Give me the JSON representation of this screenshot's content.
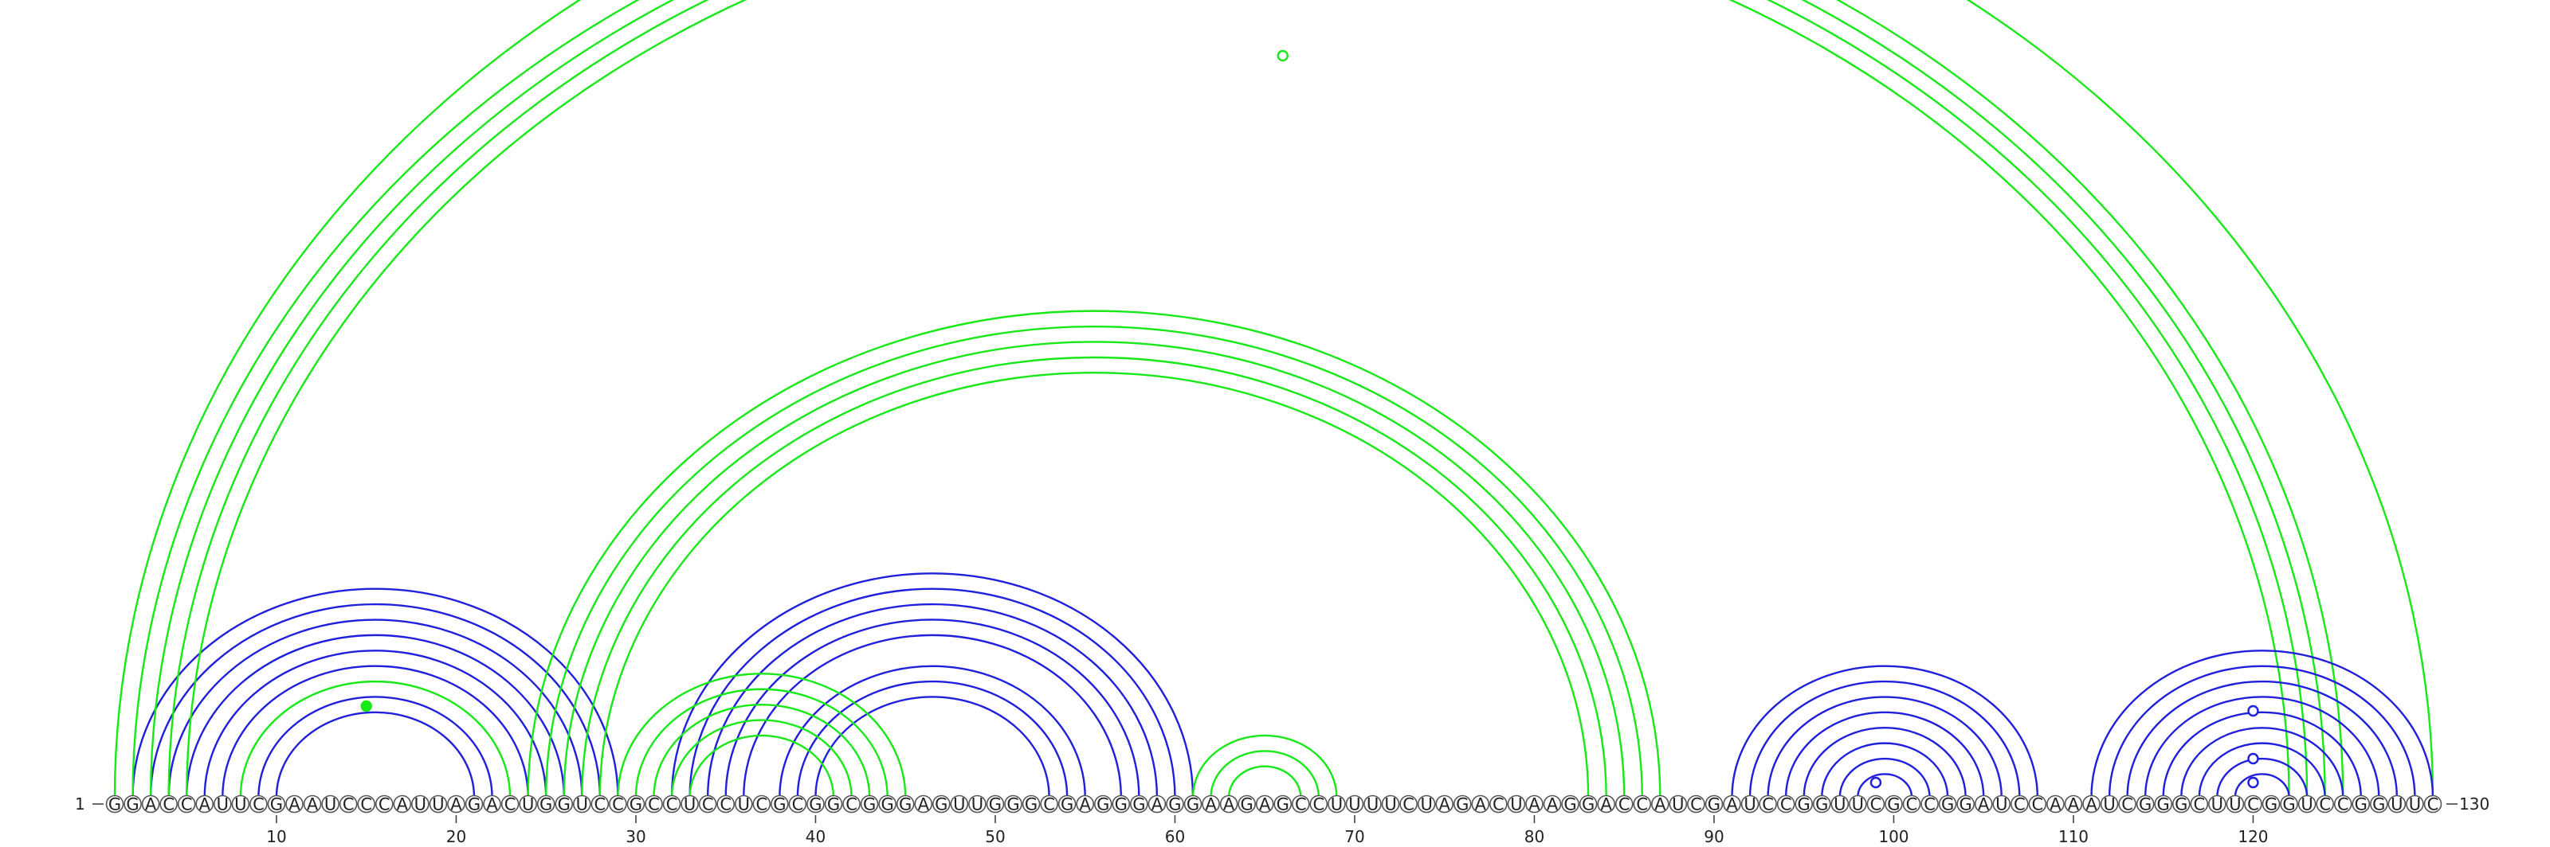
{
  "sequence": "GGACCAUUCGAAUCCCAUUAGACUGGUCCGCCUCCUCGCGGCGGGAGUUGGGCGAGGGAGGAAGAGCCUUUUCUAGACUAAGGACCAUCGAUCCGGUUCGCCGGAUCCAAAUCGGGCUUCGGUCCGGUUC",
  "start_label": "1",
  "end_label": "130",
  "tick_labels": [
    "10",
    "20",
    "30",
    "40",
    "50",
    "60",
    "70",
    "80",
    "90",
    "100",
    "110",
    "120"
  ],
  "colors": {
    "blue": "#1f1fdc",
    "green": "#18e818"
  },
  "chart_data": {
    "type": "arc-diagram",
    "length": 130,
    "tick_positions": [
      10,
      20,
      30,
      40,
      50,
      60,
      70,
      80,
      90,
      100,
      110,
      120
    ],
    "arcs": [
      {
        "i": 2,
        "j": 29,
        "color": "blue"
      },
      {
        "i": 3,
        "j": 28,
        "color": "blue"
      },
      {
        "i": 4,
        "j": 27,
        "color": "blue"
      },
      {
        "i": 5,
        "j": 26,
        "color": "blue"
      },
      {
        "i": 6,
        "j": 25,
        "color": "blue"
      },
      {
        "i": 7,
        "j": 24,
        "color": "blue"
      },
      {
        "i": 9,
        "j": 22,
        "color": "blue"
      },
      {
        "i": 10,
        "j": 21,
        "color": "blue"
      },
      {
        "i": 8,
        "j": 23,
        "color": "green"
      },
      {
        "i": 32,
        "j": 61,
        "color": "blue"
      },
      {
        "i": 33,
        "j": 60,
        "color": "blue"
      },
      {
        "i": 34,
        "j": 59,
        "color": "blue"
      },
      {
        "i": 35,
        "j": 58,
        "color": "blue"
      },
      {
        "i": 36,
        "j": 57,
        "color": "blue"
      },
      {
        "i": 38,
        "j": 55,
        "color": "blue"
      },
      {
        "i": 39,
        "j": 54,
        "color": "blue"
      },
      {
        "i": 40,
        "j": 53,
        "color": "blue"
      },
      {
        "i": 29,
        "j": 45,
        "color": "green"
      },
      {
        "i": 30,
        "j": 44,
        "color": "green"
      },
      {
        "i": 31,
        "j": 43,
        "color": "green"
      },
      {
        "i": 32,
        "j": 42,
        "color": "green"
      },
      {
        "i": 33,
        "j": 41,
        "color": "green"
      },
      {
        "i": 24,
        "j": 87,
        "color": "green"
      },
      {
        "i": 25,
        "j": 86,
        "color": "green"
      },
      {
        "i": 26,
        "j": 85,
        "color": "green"
      },
      {
        "i": 27,
        "j": 84,
        "color": "green"
      },
      {
        "i": 28,
        "j": 83,
        "color": "green"
      },
      {
        "i": 61,
        "j": 69,
        "color": "green"
      },
      {
        "i": 62,
        "j": 68,
        "color": "green"
      },
      {
        "i": 63,
        "j": 67,
        "color": "green"
      },
      {
        "i": 1,
        "j": 130,
        "color": "green"
      },
      {
        "i": 2,
        "j": 125,
        "color": "green"
      },
      {
        "i": 3,
        "j": 124,
        "color": "green"
      },
      {
        "i": 4,
        "j": 123,
        "color": "green"
      },
      {
        "i": 5,
        "j": 122,
        "color": "green"
      },
      {
        "i": 91,
        "j": 108,
        "color": "blue"
      },
      {
        "i": 92,
        "j": 107,
        "color": "blue"
      },
      {
        "i": 93,
        "j": 106,
        "color": "blue"
      },
      {
        "i": 94,
        "j": 105,
        "color": "blue"
      },
      {
        "i": 95,
        "j": 104,
        "color": "blue"
      },
      {
        "i": 96,
        "j": 103,
        "color": "blue"
      },
      {
        "i": 97,
        "j": 102,
        "color": "blue"
      },
      {
        "i": 98,
        "j": 101,
        "color": "blue"
      },
      {
        "i": 111,
        "j": 130,
        "color": "blue"
      },
      {
        "i": 112,
        "j": 129,
        "color": "blue"
      },
      {
        "i": 113,
        "j": 128,
        "color": "blue"
      },
      {
        "i": 114,
        "j": 127,
        "color": "blue"
      },
      {
        "i": 115,
        "j": 126,
        "color": "blue"
      },
      {
        "i": 116,
        "j": 125,
        "color": "blue"
      },
      {
        "i": 117,
        "j": 124,
        "color": "blue"
      },
      {
        "i": 118,
        "j": 123,
        "color": "blue"
      },
      {
        "i": 119,
        "j": 122,
        "color": "blue"
      }
    ],
    "markers": [
      {
        "i": 15,
        "color": "green",
        "filled": true
      },
      {
        "i": 66,
        "color": "green",
        "filled": false
      },
      {
        "i": 99,
        "color": "blue",
        "filled": false
      },
      {
        "i": 120,
        "color": "blue",
        "filled": false
      },
      {
        "i": 120,
        "color": "blue",
        "filled": false
      },
      {
        "i": 120,
        "color": "blue",
        "filled": false
      }
    ]
  }
}
